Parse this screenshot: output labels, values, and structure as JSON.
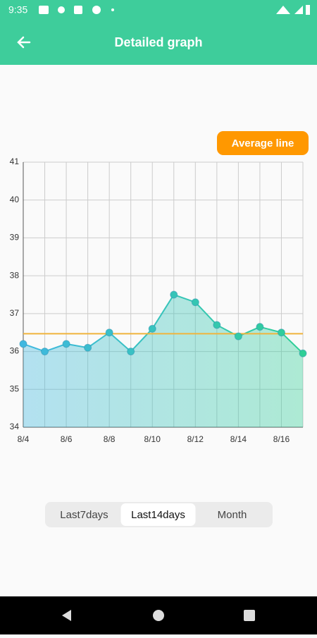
{
  "status_bar": {
    "time": "9:35"
  },
  "app_bar": {
    "title": "Detailed graph"
  },
  "average_button": "Average line",
  "tabs": {
    "items": [
      "Last7days",
      "Last14days",
      "Month"
    ],
    "selected": 1
  },
  "chart_data": {
    "type": "line",
    "categories": [
      "8/4",
      null,
      "8/6",
      null,
      "8/8",
      null,
      "8/10",
      null,
      "8/12",
      null,
      "8/14",
      null,
      "8/16",
      null
    ],
    "values": [
      36.2,
      36.0,
      36.2,
      36.1,
      36.5,
      36.0,
      36.6,
      37.5,
      37.3,
      36.7,
      36.4,
      36.65,
      36.5,
      35.95
    ],
    "colors": [
      "#3fb8e0",
      "#2fcf96"
    ],
    "average": 36.47,
    "average_color": "#f0b43c",
    "ylim": [
      34,
      41
    ],
    "yticks": [
      34,
      35,
      36,
      37,
      38,
      39,
      40,
      41
    ],
    "grid": true
  }
}
